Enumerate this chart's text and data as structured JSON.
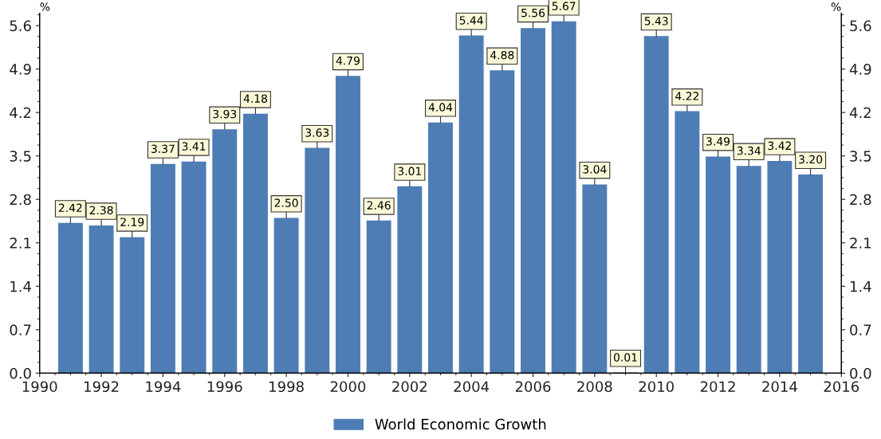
{
  "chart_data": {
    "type": "bar",
    "x": [
      1991,
      1992,
      1993,
      1994,
      1995,
      1996,
      1997,
      1998,
      1999,
      2000,
      2001,
      2002,
      2003,
      2004,
      2005,
      2006,
      2007,
      2008,
      2009,
      2010,
      2011,
      2012,
      2013,
      2014,
      2015
    ],
    "series": [
      {
        "name": "World Economic Growth",
        "color": "#4e7db5",
        "values": [
          2.42,
          2.38,
          2.19,
          3.37,
          3.41,
          3.93,
          4.18,
          2.5,
          3.63,
          4.79,
          2.46,
          3.01,
          4.04,
          5.44,
          4.88,
          5.56,
          5.67,
          3.04,
          0.01,
          5.43,
          4.22,
          3.49,
          3.34,
          3.42,
          3.2
        ],
        "value_labels": [
          "2.42",
          "2.38",
          "2.19",
          "3.37",
          "3.41",
          "3.93",
          "4.18",
          "2.50",
          "3.63",
          "4.79",
          "2.46",
          "3.01",
          "4.04",
          "5.44",
          "4.88",
          "5.56",
          "5.67",
          "3.04",
          "0.01",
          "5.43",
          "4.22",
          "3.49",
          "3.34",
          "3.42",
          "3.20"
        ]
      }
    ],
    "ylabel": "%",
    "y2label": "%",
    "xlim": [
      1990,
      2016
    ],
    "xticks": [
      1990,
      1992,
      1994,
      1996,
      1998,
      2000,
      2002,
      2004,
      2006,
      2008,
      2010,
      2012,
      2014,
      2016
    ],
    "ylim": [
      0,
      5.8
    ],
    "yticks": [
      {
        "value": 0,
        "label": "0.0"
      },
      0.7,
      1.4,
      2.1,
      2.8,
      3.5,
      4.2,
      4.9,
      5.6
    ],
    "y2lim": [
      0,
      5.8
    ],
    "y2ticks": [
      {
        "value": 0,
        "label": "0.0"
      },
      0.7,
      1.4,
      2.1,
      2.8,
      3.5,
      4.2,
      4.9,
      5.6
    ],
    "grid": false,
    "legend": "bottom"
  }
}
